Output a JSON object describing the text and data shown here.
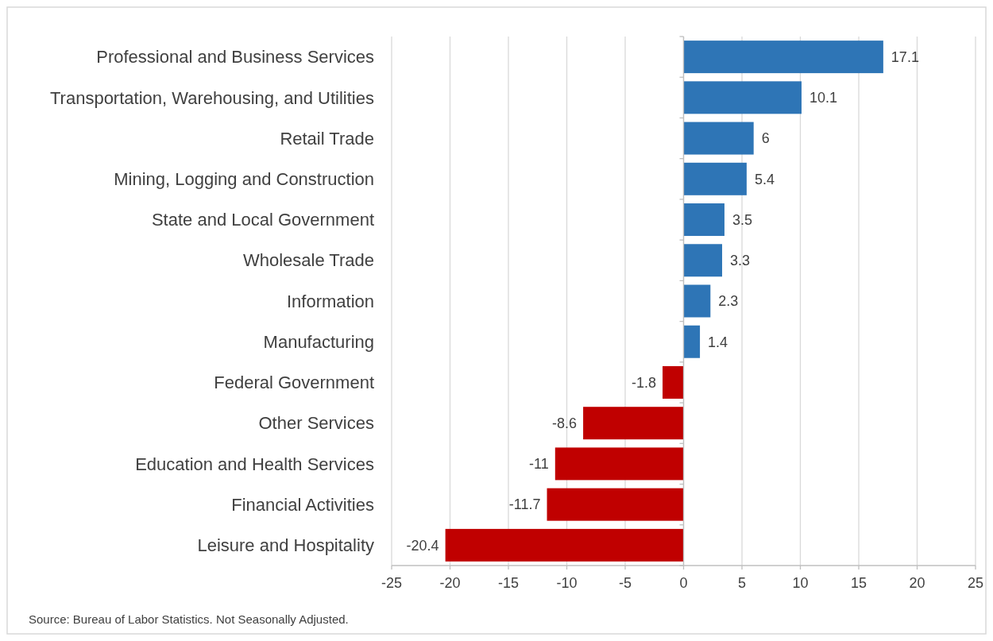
{
  "chart_data": {
    "type": "bar",
    "orientation": "horizontal",
    "categories": [
      "Professional and Business Services",
      "Transportation, Warehousing, and Utilities",
      "Retail Trade",
      "Mining, Logging and Construction",
      "State and Local Government",
      "Wholesale Trade",
      "Information",
      "Manufacturing",
      "Federal Government",
      "Other Services",
      "Education and Health Services",
      "Financial Activities",
      "Leisure and Hospitality"
    ],
    "values": [
      17.1,
      10.1,
      6,
      5.4,
      3.5,
      3.3,
      2.3,
      1.4,
      -1.8,
      -8.6,
      -11,
      -11.7,
      -20.4
    ],
    "colors": [
      "#2e75b6",
      "#2e75b6",
      "#2e75b6",
      "#2e75b6",
      "#2e75b6",
      "#2e75b6",
      "#2e75b6",
      "#2e75b6",
      "#c00000",
      "#c00000",
      "#c00000",
      "#c00000",
      "#c00000"
    ],
    "xlim": [
      -25,
      25
    ],
    "xticks": [
      -25,
      -20,
      -15,
      -10,
      -5,
      0,
      5,
      10,
      15,
      20,
      25
    ],
    "grid": "x",
    "data_labels": true,
    "annotations": [
      "Source: Bureau of Labor Statistics. Not Seasonally Adjusted."
    ]
  }
}
